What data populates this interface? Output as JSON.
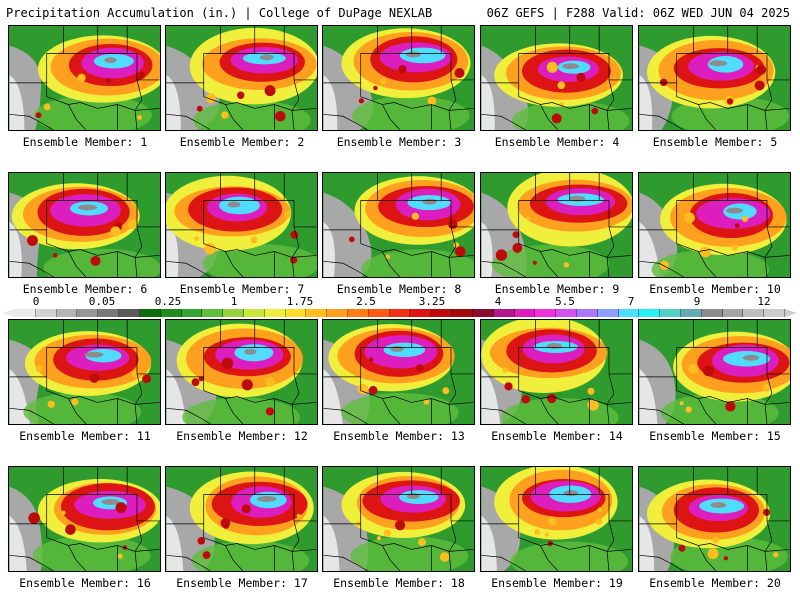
{
  "header": {
    "left": "Precipitation Accumulation (in.) | College of DuPage NEXLAB",
    "right": "06Z GEFS | F288 Valid: 06Z WED JUN 04 2025"
  },
  "members": [
    {
      "label": "Ensemble Member: 1"
    },
    {
      "label": "Ensemble Member: 2"
    },
    {
      "label": "Ensemble Member: 3"
    },
    {
      "label": "Ensemble Member: 4"
    },
    {
      "label": "Ensemble Member: 5"
    },
    {
      "label": "Ensemble Member: 6"
    },
    {
      "label": "Ensemble Member: 7"
    },
    {
      "label": "Ensemble Member: 8"
    },
    {
      "label": "Ensemble Member: 9"
    },
    {
      "label": "Ensemble Member: 10"
    },
    {
      "label": "Ensemble Member: 11"
    },
    {
      "label": "Ensemble Member: 12"
    },
    {
      "label": "Ensemble Member: 13"
    },
    {
      "label": "Ensemble Member: 14"
    },
    {
      "label": "Ensemble Member: 15"
    },
    {
      "label": "Ensemble Member: 16"
    },
    {
      "label": "Ensemble Member: 17"
    },
    {
      "label": "Ensemble Member: 18"
    },
    {
      "label": "Ensemble Member: 19"
    },
    {
      "label": "Ensemble Member: 20"
    }
  ],
  "colorbar": {
    "ticks": [
      "0",
      "0.05",
      "0.25",
      "1",
      "1.75",
      "2.5",
      "3.25",
      "4",
      "5.5",
      "7",
      "9",
      "12"
    ],
    "colors": [
      "#e8e8e8",
      "#d2d2d2",
      "#b4b4b4",
      "#969696",
      "#787878",
      "#5a5a5a",
      "#0e6e0e",
      "#1e8c1e",
      "#32a532",
      "#5fbe3c",
      "#96d23c",
      "#c8e63c",
      "#f0f03c",
      "#ffdc28",
      "#ffbe1e",
      "#ffa01e",
      "#ff7d14",
      "#ff5a14",
      "#f03214",
      "#dc1414",
      "#be0a0a",
      "#a00a0a",
      "#8c0a32",
      "#b4148c",
      "#dc1ebe",
      "#f032dc",
      "#d250f0",
      "#aa78ff",
      "#8ca0ff",
      "#50dcff",
      "#28f0f0",
      "#50d2c8",
      "#64aab4",
      "#8c8c8c",
      "#a5a5a5",
      "#bebebe",
      "#cccccc"
    ]
  }
}
